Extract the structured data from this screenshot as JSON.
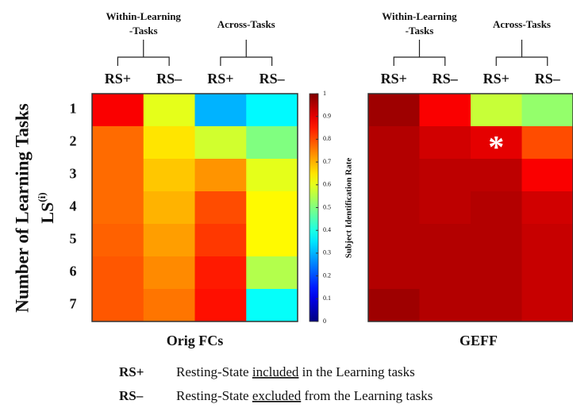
{
  "chart_data": [
    {
      "type": "heatmap",
      "title": "Orig FCs",
      "categories": [
        "RS+",
        "RS–",
        "RS+",
        "RS–"
      ],
      "column_groups": [
        {
          "label": [
            "Within-Learning",
            "-Tasks"
          ]
        },
        {
          "label": [
            "Across-Tasks"
          ]
        }
      ],
      "rows": [
        "1",
        "2",
        "3",
        "4",
        "5",
        "6",
        "7"
      ],
      "values": [
        [
          0.88,
          0.6,
          0.3,
          0.37
        ],
        [
          0.77,
          0.65,
          0.58,
          0.5
        ],
        [
          0.77,
          0.68,
          0.73,
          0.6
        ],
        [
          0.77,
          0.7,
          0.8,
          0.63
        ],
        [
          0.78,
          0.72,
          0.82,
          0.63
        ],
        [
          0.79,
          0.74,
          0.85,
          0.55
        ],
        [
          0.79,
          0.76,
          0.86,
          0.38
        ]
      ]
    },
    {
      "type": "heatmap",
      "title": "GEFF",
      "categories": [
        "RS+",
        "RS–",
        "RS+",
        "RS–"
      ],
      "column_groups": [
        {
          "label": [
            "Within-Learning",
            "-Tasks"
          ]
        },
        {
          "label": [
            "Across-Tasks"
          ]
        }
      ],
      "values": [
        [
          0.97,
          0.88,
          0.57,
          0.52
        ],
        [
          0.95,
          0.92,
          0.9,
          0.8
        ],
        [
          0.95,
          0.94,
          0.94,
          0.88
        ],
        [
          0.95,
          0.94,
          0.95,
          0.92
        ],
        [
          0.95,
          0.95,
          0.95,
          0.93
        ],
        [
          0.95,
          0.95,
          0.95,
          0.93
        ],
        [
          0.97,
          0.95,
          0.95,
          0.93
        ]
      ],
      "annotations": [
        {
          "text": "*",
          "row": 1,
          "col": 2
        }
      ]
    }
  ],
  "ylabel": "Number of Learning Tasks",
  "ylabel_sub": {
    "text": "LS",
    "sup": "(i)"
  },
  "colorbar": {
    "label": "Subject Identification Rate",
    "lim": [
      0,
      1
    ],
    "ticks": [
      0,
      0.1,
      0.2,
      0.3,
      0.4,
      0.5,
      0.6,
      0.7,
      0.8,
      0.9,
      1
    ]
  },
  "legend": [
    {
      "key": "RS+",
      "text": [
        "Resting-State ",
        "included",
        " in the Learning tasks"
      ]
    },
    {
      "key": "RS–",
      "text": [
        "Resting-State ",
        "excluded",
        " from the Learning tasks"
      ]
    }
  ]
}
